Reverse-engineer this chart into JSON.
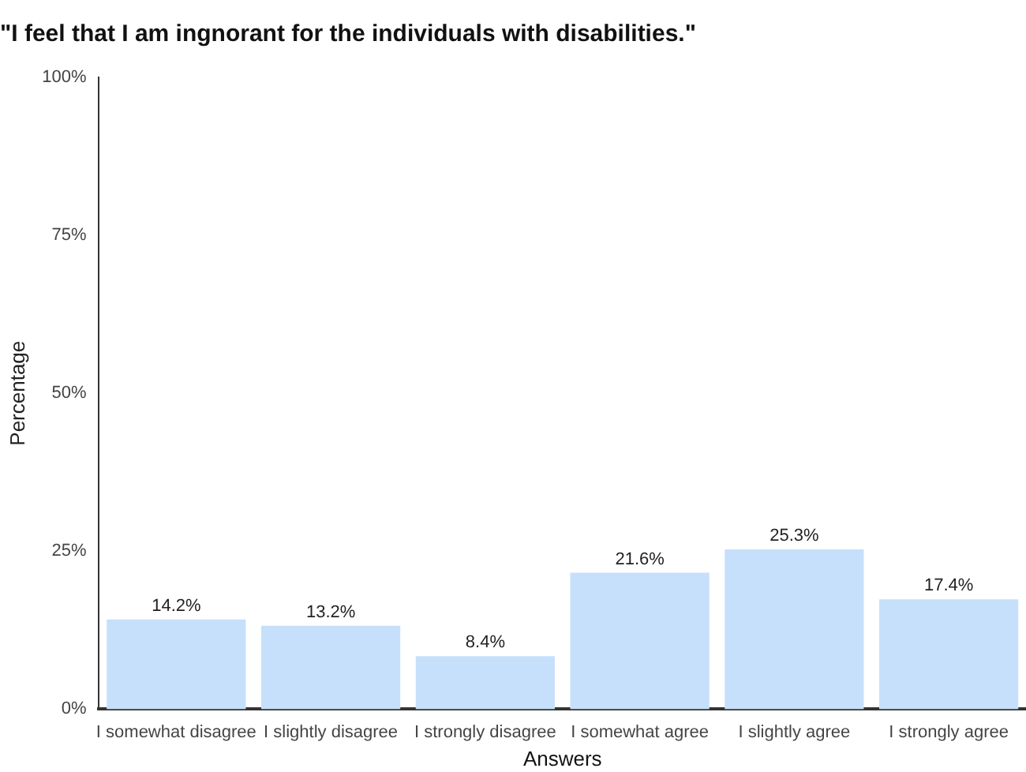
{
  "chart_data": {
    "type": "bar",
    "title": "\"I feel that I am ingnorant for the individuals with disabilities.\"",
    "xlabel": "Answers",
    "ylabel": "Percentage",
    "categories": [
      "I somewhat disagree",
      "I slightly disagree",
      "I strongly disagree",
      "I somewhat agree",
      "I slightly agree",
      "I strongly agree"
    ],
    "values": [
      14.2,
      13.2,
      8.4,
      21.6,
      25.3,
      17.4
    ],
    "value_labels": [
      "14.2%",
      "13.2%",
      "8.4%",
      "21.6%",
      "25.3%",
      "17.4%"
    ],
    "color": "#c6e0fb",
    "ylim": [
      0,
      100
    ],
    "yticks": [
      {
        "value": 0,
        "label": "0%"
      },
      {
        "value": 25,
        "label": "25%"
      },
      {
        "value": 50,
        "label": "50%"
      },
      {
        "value": 75,
        "label": "75%"
      },
      {
        "value": 100,
        "label": "100%"
      }
    ],
    "grid": false,
    "legend": false
  }
}
